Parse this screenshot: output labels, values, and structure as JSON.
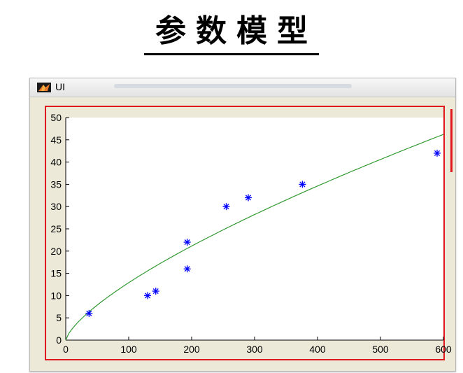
{
  "page": {
    "heading": "参数模型"
  },
  "window": {
    "title": "UI"
  },
  "colors": {
    "highlight": "#e0181e",
    "points": "#0000ff",
    "fit_line": "#339933",
    "plot_bg": "#ffffff",
    "window_bg": "#ece9d8"
  },
  "chart_data": {
    "type": "scatter",
    "title": "",
    "xlabel": "",
    "ylabel": "",
    "xlim": [
      0,
      600
    ],
    "ylim": [
      0,
      50
    ],
    "x_ticks": [
      0,
      100,
      200,
      300,
      400,
      500,
      600
    ],
    "y_ticks": [
      0,
      5,
      10,
      15,
      20,
      25,
      30,
      35,
      40,
      45,
      50
    ],
    "grid": false,
    "series": [
      {
        "marker": "*",
        "points": [
          [
            37,
            6
          ],
          [
            130,
            10
          ],
          [
            143,
            11
          ],
          [
            193,
            16
          ],
          [
            193,
            22
          ],
          [
            255,
            30
          ],
          [
            290,
            32
          ],
          [
            376,
            35
          ],
          [
            590,
            42
          ]
        ]
      },
      {
        "line": "fit",
        "curve": {
          "a": 0.4846,
          "b": 0.7125
        }
      }
    ]
  }
}
